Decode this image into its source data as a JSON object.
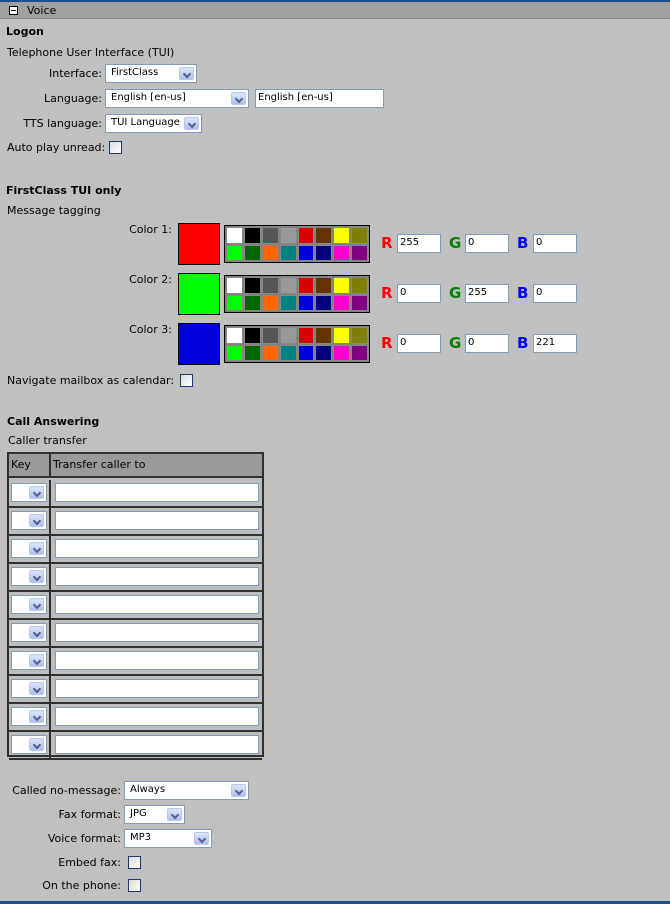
{
  "header": {
    "title": "Voice",
    "collapse_icon": "minus-box-icon"
  },
  "logon": {
    "title": "Logon",
    "subtitle": "Telephone User Interface (TUI)",
    "interface_label": "Interface:",
    "interface_value": "FirstClass",
    "language_label": "Language:",
    "language_value": "English [en-us]",
    "language_text": "English [en-us]",
    "tts_label": "TTS language:",
    "tts_value": "TUI Language",
    "autoplay_label": "Auto play unread:",
    "autoplay_checked": false
  },
  "tui": {
    "title": "FirstClass TUI only",
    "subtitle": "Message tagging",
    "palette": [
      "#ffffff",
      "#000000",
      "#555555",
      "#999999",
      "#dd0000",
      "#663300",
      "#ffff00",
      "#808000",
      "#00ff00",
      "#006600",
      "#ff6600",
      "#008080",
      "#0000dd",
      "#000080",
      "#ff00cc",
      "#800080"
    ],
    "r_label": "R",
    "g_label": "G",
    "b_label": "B",
    "r_color": "#ff0000",
    "g_color": "#008000",
    "b_color": "#0000ff",
    "colors": [
      {
        "label": "Color 1:",
        "swatch": "#ff0000",
        "r": "255",
        "g": "0",
        "b": "0"
      },
      {
        "label": "Color 2:",
        "swatch": "#00ff00",
        "r": "0",
        "g": "255",
        "b": "0"
      },
      {
        "label": "Color 3:",
        "swatch": "#0000dd",
        "r": "0",
        "g": "0",
        "b": "221"
      }
    ],
    "navigate_label": "Navigate mailbox as calendar:",
    "navigate_checked": false
  },
  "call": {
    "title": "Call Answering",
    "subtitle": "Caller transfer",
    "col_key": "Key",
    "col_transfer": "Transfer caller to",
    "rows": [
      {
        "key": "",
        "to": ""
      },
      {
        "key": "",
        "to": ""
      },
      {
        "key": "",
        "to": ""
      },
      {
        "key": "",
        "to": ""
      },
      {
        "key": "",
        "to": ""
      },
      {
        "key": "",
        "to": ""
      },
      {
        "key": "",
        "to": ""
      },
      {
        "key": "",
        "to": ""
      },
      {
        "key": "",
        "to": ""
      },
      {
        "key": "",
        "to": ""
      }
    ],
    "nomsg_label": "Called no-message:",
    "nomsg_value": "Always",
    "fax_label": "Fax format:",
    "fax_value": "JPG",
    "voice_label": "Voice format:",
    "voice_value": "MP3",
    "embed_label": "Embed fax:",
    "embed_checked": false,
    "phone_label": "On the phone:",
    "phone_checked": false
  }
}
